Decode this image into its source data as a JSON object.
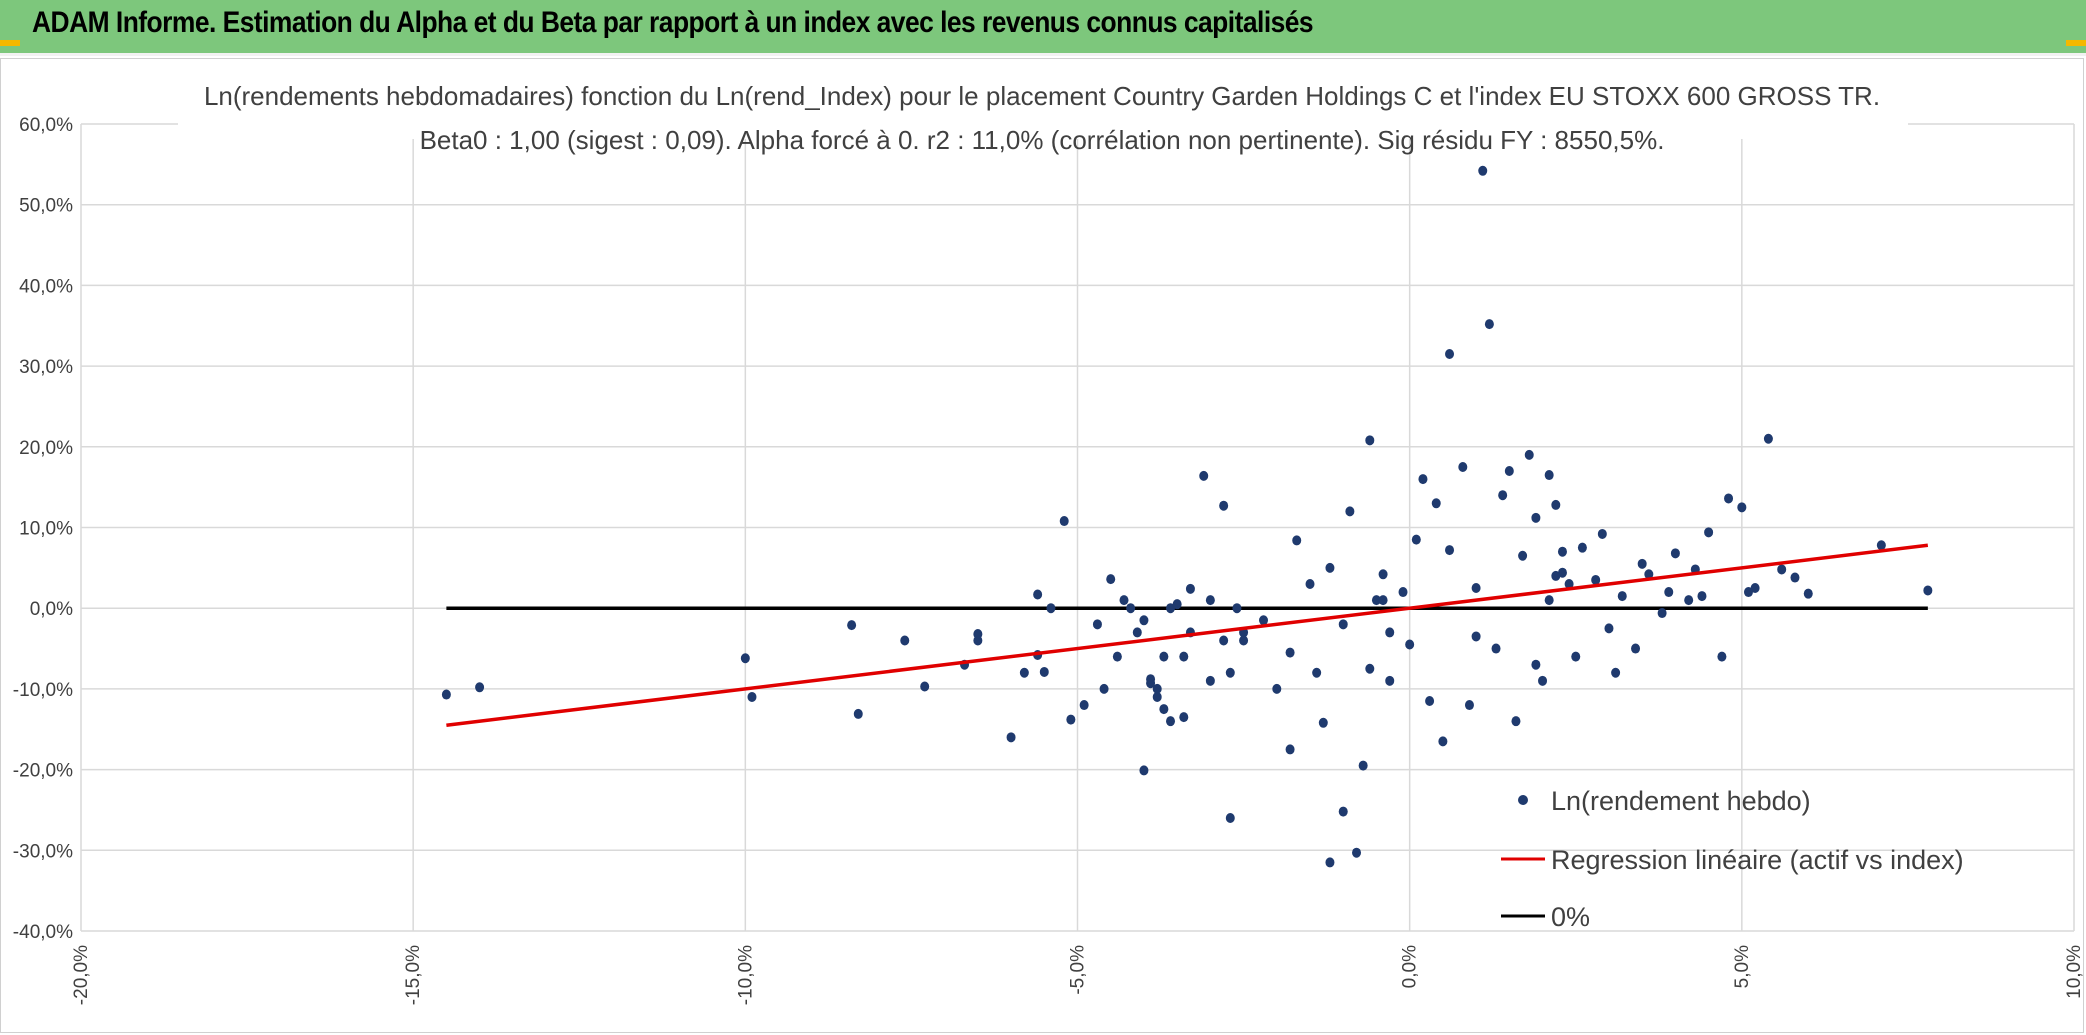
{
  "header": {
    "title": "ADAM Informe. Estimation du Alpha et du Beta par rapport à un index avec les revenus connus capitalisés"
  },
  "colors": {
    "banner": "#7dc77c",
    "points": "#1f3a6e",
    "regression": "#e00000",
    "zero_line": "#000000",
    "grid": "#d9d9d9"
  },
  "chart_data": {
    "type": "scatter",
    "title_line1": "Ln(rendements hebdomadaires) fonction du Ln(rend_Index) pour le placement Country Garden Holdings C et l'index EU STOXX 600 GROSS TR.",
    "title_line2": "Beta0 : 1,00 (sigest : 0,09). Alpha forcé à 0. r2 : 11,0% (corrélation non pertinente). Sig résidu FY : 8550,5%.",
    "xlim": [
      -0.2,
      0.1
    ],
    "ylim": [
      -0.4,
      0.6
    ],
    "x_ticks": [
      -0.2,
      -0.15,
      -0.1,
      -0.05,
      0.0,
      0.05,
      0.1
    ],
    "x_tick_labels": [
      "-20,0%",
      "-15,0%",
      "-10,0%",
      "-5,0%",
      "0,0%",
      "5,0%",
      "10,0%"
    ],
    "y_ticks": [
      -0.4,
      -0.3,
      -0.2,
      -0.1,
      0.0,
      0.1,
      0.2,
      0.3,
      0.4,
      0.5,
      0.6
    ],
    "y_tick_labels": [
      "-40,0%",
      "-30,0%",
      "-20,0%",
      "-10,0%",
      "0,0%",
      "10,0%",
      "20,0%",
      "30,0%",
      "40,0%",
      "50,0%",
      "60,0%"
    ],
    "grid": true,
    "legend_position": "bottom-right",
    "series": [
      {
        "name": "Ln(rendement hebdo)",
        "kind": "scatter",
        "x": [
          -0.145,
          -0.14,
          -0.1,
          -0.099,
          -0.084,
          -0.083,
          -0.076,
          -0.073,
          -0.067,
          -0.065,
          -0.065,
          -0.06,
          -0.058,
          -0.051,
          -0.049,
          -0.052,
          -0.046,
          -0.047,
          -0.045,
          -0.044,
          -0.041,
          -0.042,
          -0.04,
          -0.038,
          -0.034,
          -0.031,
          -0.028,
          -0.027,
          -0.027,
          -0.025,
          -0.056,
          -0.056,
          -0.055,
          -0.054,
          -0.039,
          -0.039,
          -0.038,
          -0.037,
          -0.036,
          -0.036,
          -0.034,
          -0.033,
          -0.03,
          -0.025,
          -0.02,
          -0.018,
          -0.017,
          -0.013,
          -0.012,
          -0.01,
          -0.008,
          -0.007,
          -0.006,
          -0.005,
          -0.004,
          -0.003,
          -0.001,
          0.002,
          0.003,
          0.004,
          0.005,
          0.006,
          0.008,
          0.009,
          0.011,
          0.012,
          0.015,
          0.016,
          0.018,
          0.019,
          0.02,
          0.021,
          0.022,
          0.023,
          0.025,
          0.026,
          0.028,
          0.03,
          0.032,
          0.034,
          0.036,
          0.038,
          0.04,
          0.042,
          0.043,
          0.045,
          0.048,
          0.05,
          0.052,
          0.054,
          0.056,
          0.058,
          0.06,
          0.071,
          0.078,
          0.024,
          0.023,
          0.021,
          0.01,
          0.0,
          -0.004,
          -0.006,
          -0.01,
          -0.012,
          -0.014,
          -0.015,
          -0.018,
          -0.022,
          -0.026,
          -0.028,
          -0.03,
          -0.033,
          -0.035,
          -0.037,
          -0.04,
          -0.043,
          0.001,
          0.013,
          0.017,
          0.019,
          0.022,
          0.029,
          0.031,
          0.035,
          0.039,
          0.044,
          0.047,
          0.051,
          -0.009,
          -0.003,
          0.006,
          0.01,
          0.014
        ],
        "y": [
          -0.107,
          -0.098,
          -0.062,
          -0.11,
          -0.021,
          -0.131,
          -0.04,
          -0.097,
          -0.07,
          -0.04,
          -0.032,
          -0.16,
          -0.08,
          -0.138,
          -0.12,
          0.108,
          -0.1,
          -0.02,
          0.036,
          -0.06,
          -0.03,
          0.0,
          -0.201,
          -0.1,
          -0.135,
          0.164,
          0.127,
          -0.26,
          -0.08,
          -0.03,
          0.017,
          -0.058,
          -0.079,
          0.0,
          -0.093,
          -0.088,
          -0.11,
          -0.125,
          -0.14,
          0.0,
          -0.06,
          0.024,
          -0.09,
          -0.04,
          -0.1,
          -0.175,
          0.084,
          -0.142,
          -0.315,
          -0.252,
          -0.303,
          -0.195,
          0.208,
          0.01,
          0.042,
          -0.03,
          0.02,
          0.16,
          -0.115,
          0.13,
          -0.165,
          0.315,
          0.175,
          -0.12,
          0.542,
          0.352,
          0.17,
          -0.14,
          0.19,
          0.112,
          -0.09,
          0.165,
          0.128,
          0.044,
          -0.06,
          0.075,
          0.035,
          -0.025,
          0.015,
          -0.05,
          0.042,
          -0.006,
          0.068,
          0.01,
          0.048,
          0.094,
          0.136,
          0.125,
          0.025,
          0.21,
          0.048,
          0.038,
          0.018,
          0.078,
          0.022,
          0.03,
          0.07,
          0.01,
          -0.035,
          -0.045,
          0.01,
          -0.075,
          -0.02,
          0.05,
          -0.08,
          0.03,
          -0.055,
          -0.015,
          0.0,
          -0.04,
          0.01,
          -0.03,
          0.005,
          -0.06,
          -0.015,
          0.01,
          0.085,
          -0.05,
          0.065,
          -0.07,
          0.04,
          0.092,
          -0.08,
          0.055,
          0.02,
          0.015,
          -0.06,
          0.02,
          0.12,
          -0.09,
          0.072,
          0.025,
          0.14
        ]
      },
      {
        "name": "Regression linéaire (actif vs index)",
        "kind": "line",
        "x": [
          -0.145,
          0.078
        ],
        "y": [
          -0.145,
          0.078
        ]
      },
      {
        "name": "0%",
        "kind": "line",
        "x": [
          -0.145,
          0.078
        ],
        "y": [
          0.0,
          0.0
        ]
      }
    ]
  }
}
